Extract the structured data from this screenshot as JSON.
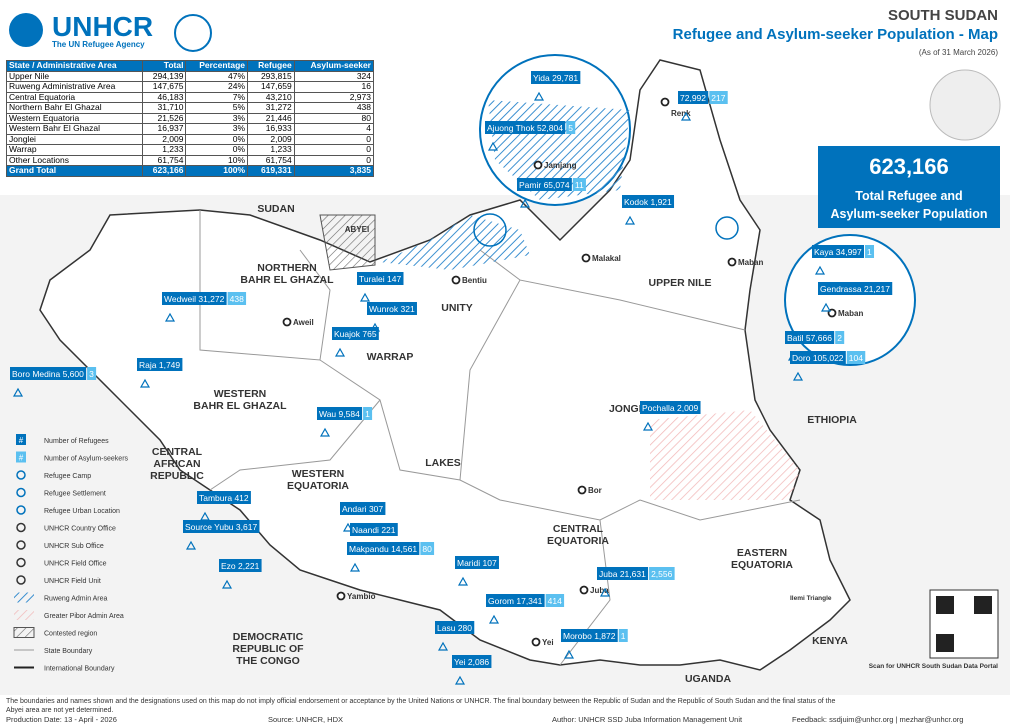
{
  "header": {
    "logo": "UNHCR",
    "tagline": "The UN Refugee Agency",
    "country": "SOUTH SUDAN",
    "title": "Refugee and Asylum-seeker Population - Map",
    "date": "(As of 31 March 2026)"
  },
  "table": {
    "headers": [
      "State / Administrative Area",
      "Total",
      "Percentage",
      "Refugee",
      "Asylum-seeker"
    ],
    "rows": [
      [
        "Upper Nile",
        "294,139",
        "47%",
        "293,815",
        "324"
      ],
      [
        "Ruweng Administrative Area",
        "147,675",
        "24%",
        "147,659",
        "16"
      ],
      [
        "Central Equatoria",
        "46,183",
        "7%",
        "43,210",
        "2,973"
      ],
      [
        "Northern Bahr El Ghazal",
        "31,710",
        "5%",
        "31,272",
        "438"
      ],
      [
        "Western Equatoria",
        "21,526",
        "3%",
        "21,446",
        "80"
      ],
      [
        "Western Bahr El Ghazal",
        "16,937",
        "3%",
        "16,933",
        "4"
      ],
      [
        "Jonglei",
        "2,009",
        "0%",
        "2,009",
        "0"
      ],
      [
        "Warrap",
        "1,233",
        "0%",
        "1,233",
        "0"
      ],
      [
        "Other Locations",
        "61,754",
        "10%",
        "61,754",
        "0"
      ]
    ],
    "total": [
      "Grand Total",
      "623,166",
      "100%",
      "619,331",
      "3,835"
    ]
  },
  "summary": {
    "value": "623,166",
    "label": [
      "Total Refugee and",
      "Asylum-seeker Population"
    ]
  },
  "regions": [
    [
      "SUDAN"
    ],
    [
      "NORTHERN",
      "BAHR EL GHAZAL"
    ],
    [
      "UNITY"
    ],
    [
      "UPPER NILE"
    ],
    [
      "WARRAP"
    ],
    [
      "WESTERN",
      "BAHR EL GHAZAL"
    ],
    [
      "JONGLEI"
    ],
    [
      "ETHIOPIA"
    ],
    [
      "CENTRAL",
      "AFRICAN",
      "REPUBLIC"
    ],
    [
      "WESTERN",
      "EQUATORIA"
    ],
    [
      "LAKES"
    ],
    [
      "CENTRAL",
      "EQUATORIA"
    ],
    [
      "EASTERN",
      "EQUATORIA"
    ],
    [
      "DEMOCRATIC",
      "REPUBLIC OF",
      "THE CONGO"
    ],
    [
      "KENYA"
    ],
    [
      "UGANDA"
    ],
    [
      "ABYEI"
    ]
  ],
  "towns": [
    "Bentiu",
    "Malakal",
    "Maban",
    "Renk",
    "Aweil",
    "Bor",
    "Yambio",
    "Juba",
    "Yei",
    "Jamjang",
    "Maban",
    "Ilemi Triangle"
  ],
  "locations": [
    {
      "name": "Yida",
      "refugees": "29,781"
    },
    {
      "name": "Ajuong Thok",
      "refugees": "52,804",
      "asylum": "5"
    },
    {
      "name": "Pamir",
      "refugees": "65,074",
      "asylum": "11"
    },
    {
      "refugees": "72,992",
      "asylum": "217"
    },
    {
      "name": "Kodok",
      "refugees": "1,921"
    },
    {
      "name": "Kaya",
      "refugees": "34,997",
      "asylum": "1"
    },
    {
      "name": "Gendrassa",
      "refugees": "21,217"
    },
    {
      "name": "Batil",
      "refugees": "57,666",
      "asylum": "2"
    },
    {
      "name": "Doro",
      "refugees": "105,022",
      "asylum": "104"
    },
    {
      "name": "Turalei",
      "refugees": "147"
    },
    {
      "name": "Wunrok",
      "refugees": "321"
    },
    {
      "name": "Wedweil",
      "refugees": "31,272",
      "asylum": "438"
    },
    {
      "name": "Kuajok",
      "refugees": "765"
    },
    {
      "name": "Boro Medina",
      "refugees": "5,600",
      "asylum": "3"
    },
    {
      "name": "Raja",
      "refugees": "1,749"
    },
    {
      "name": "Wau",
      "refugees": "9,584",
      "asylum": "1"
    },
    {
      "name": "Pochalla",
      "refugees": "2,009"
    },
    {
      "name": "Tambura",
      "refugees": "412"
    },
    {
      "name": "Source Yubu",
      "refugees": "3,617"
    },
    {
      "name": "Andari",
      "refugees": "307"
    },
    {
      "name": "Naandi",
      "refugees": "221"
    },
    {
      "name": "Makpandu",
      "refugees": "14,561",
      "asylum": "80"
    },
    {
      "name": "Ezo",
      "refugees": "2,221"
    },
    {
      "name": "Maridi",
      "refugees": "107"
    },
    {
      "name": "Juba",
      "refugees": "21,631",
      "asylum": "2,556"
    },
    {
      "name": "Gorom",
      "refugees": "17,341",
      "asylum": "414"
    },
    {
      "name": "Lasu",
      "refugees": "280"
    },
    {
      "name": "Morobo",
      "refugees": "1,872",
      "asylum": "1"
    },
    {
      "name": "Yei",
      "refugees": "2,086"
    }
  ],
  "legend": [
    {
      "symbol": "#",
      "label": "Number of Refugees"
    },
    {
      "symbol": "#",
      "label": "Number of Asylum-seekers"
    },
    {
      "label": "Refugee Camp"
    },
    {
      "label": "Refugee Settlement"
    },
    {
      "label": "Refugee Urban Location"
    },
    {
      "label": "UNHCR Country Office"
    },
    {
      "label": "UNHCR Sub Office"
    },
    {
      "label": "UNHCR Field Office"
    },
    {
      "label": "UNHCR Field Unit"
    },
    {
      "label": "Ruweng Admin Area"
    },
    {
      "label": "Greater Pibor Admin Area"
    },
    {
      "label": "Contested region"
    },
    {
      "label": "State Boundary"
    },
    {
      "label": "International Boundary"
    }
  ],
  "qr_caption": "Scan for UNHCR South Sudan Data Portal",
  "footer": {
    "disclaimer": [
      "The boundaries and names shown and the designations used on this map do not imply official endorsement or acceptance by the United Nations or UNHCR. The final boundary between the Republic of Sudan and the Republic of South Sudan and the final status of the",
      "Abyei area are not yet determined."
    ],
    "production": "Production Date: 13 - April - 2026",
    "source": "Source: UNHCR, HDX",
    "author": "Author: UNHCR SSD Juba Information Management Unit",
    "feedback": "Feedback: ssdjuim@unhcr.org | mezhar@unhcr.org"
  }
}
